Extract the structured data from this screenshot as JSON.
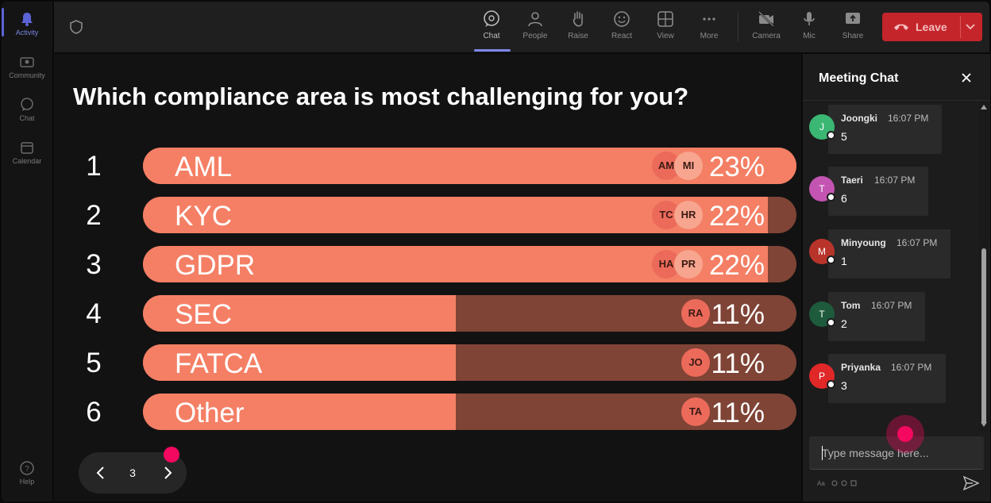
{
  "rail": {
    "items": [
      {
        "label": "Activity",
        "icon": "bell-icon",
        "active": true
      },
      {
        "label": "Community",
        "icon": "community-icon"
      },
      {
        "label": "Chat",
        "icon": "chat-icon"
      },
      {
        "label": "Calendar",
        "icon": "calendar-icon"
      },
      {
        "label": "Help",
        "icon": "help-icon"
      }
    ]
  },
  "toolbar": {
    "chat": "Chat",
    "people": "People",
    "raise": "Raise",
    "react": "React",
    "view": "View",
    "more": "More",
    "camera": "Camera",
    "mic": "Mic",
    "share": "Share",
    "leave": "Leave"
  },
  "poll": {
    "question": "Which compliance area is most challenging for you?",
    "options": [
      {
        "rank": "1",
        "label": "AML",
        "percent": "23%",
        "value": 0.23,
        "avatars": [
          "AM",
          "MI"
        ]
      },
      {
        "rank": "2",
        "label": "KYC",
        "percent": "22%",
        "value": 0.22,
        "avatars": [
          "TC",
          "HR"
        ]
      },
      {
        "rank": "3",
        "label": "GDPR",
        "percent": "22%",
        "value": 0.22,
        "avatars": [
          "HA",
          "PR"
        ]
      },
      {
        "rank": "4",
        "label": "SEC",
        "percent": "11%",
        "value": 0.11,
        "avatars": [
          "RA"
        ]
      },
      {
        "rank": "5",
        "label": "FATCA",
        "percent": "11%",
        "value": 0.11,
        "avatars": [
          "JO"
        ]
      },
      {
        "rank": "6",
        "label": "Other",
        "percent": "11%",
        "value": 0.11,
        "avatars": [
          "TA"
        ]
      }
    ],
    "colors": {
      "fill": "#f47f65",
      "track": "#7f4436"
    }
  },
  "pager": {
    "page": "3"
  },
  "chat": {
    "title": "Meeting Chat",
    "messages": [
      {
        "initial": "J",
        "name": "Joongki",
        "time": "16:07 PM",
        "text": "5",
        "color": "#3bb774"
      },
      {
        "initial": "T",
        "name": "Taeri",
        "time": "16:07 PM",
        "text": "6",
        "color": "#c454b2"
      },
      {
        "initial": "M",
        "name": "Minyoung",
        "time": "16:07 PM",
        "text": "1",
        "color": "#b8342a"
      },
      {
        "initial": "T",
        "name": "Tom",
        "time": "16:07 PM",
        "text": "2",
        "color": "#1e5a3c"
      },
      {
        "initial": "P",
        "name": "Priyanka",
        "time": "16:07 PM",
        "text": "3",
        "color": "#e02828"
      }
    ],
    "placeholder": "Type message here..."
  }
}
